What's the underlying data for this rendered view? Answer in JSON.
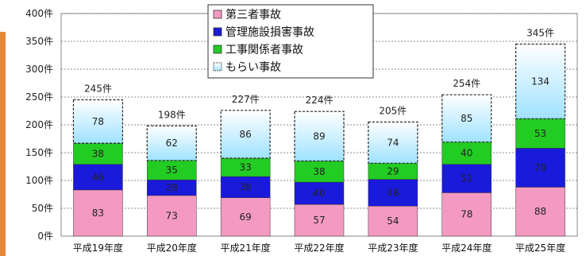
{
  "chart_data": {
    "type": "bar",
    "stacked": true,
    "categories": [
      "平成19年度",
      "平成20年度",
      "平成21年度",
      "平成22年度",
      "平成23年度",
      "平成24年度",
      "平成25年度"
    ],
    "ylim": [
      0,
      400
    ],
    "yticks": [
      0,
      50,
      100,
      150,
      200,
      250,
      300,
      350,
      400
    ],
    "ytick_labels": [
      "0件",
      "50件",
      "100件",
      "150件",
      "200件",
      "250件",
      "300件",
      "350件",
      "400件"
    ],
    "grid": true,
    "legend_position": "top-center",
    "series": [
      {
        "name": "第三者事故",
        "color": "#f49ac2",
        "values": [
          83,
          73,
          69,
          57,
          54,
          78,
          88
        ]
      },
      {
        "name": "管理施設損害事故",
        "color": "#1a1adb",
        "values": [
          46,
          28,
          38,
          40,
          48,
          51,
          70
        ]
      },
      {
        "name": "工事関係者事故",
        "color": "#22cc22",
        "values": [
          38,
          35,
          33,
          38,
          29,
          40,
          53
        ]
      },
      {
        "name": "もらい事故",
        "color": "#bfeaff",
        "values": [
          78,
          62,
          86,
          89,
          74,
          85,
          134
        ]
      }
    ],
    "totals": [
      245,
      198,
      227,
      224,
      205,
      254,
      345
    ],
    "total_labels": [
      "245件",
      "198件",
      "227件",
      "224件",
      "205件",
      "254件",
      "345件"
    ]
  }
}
